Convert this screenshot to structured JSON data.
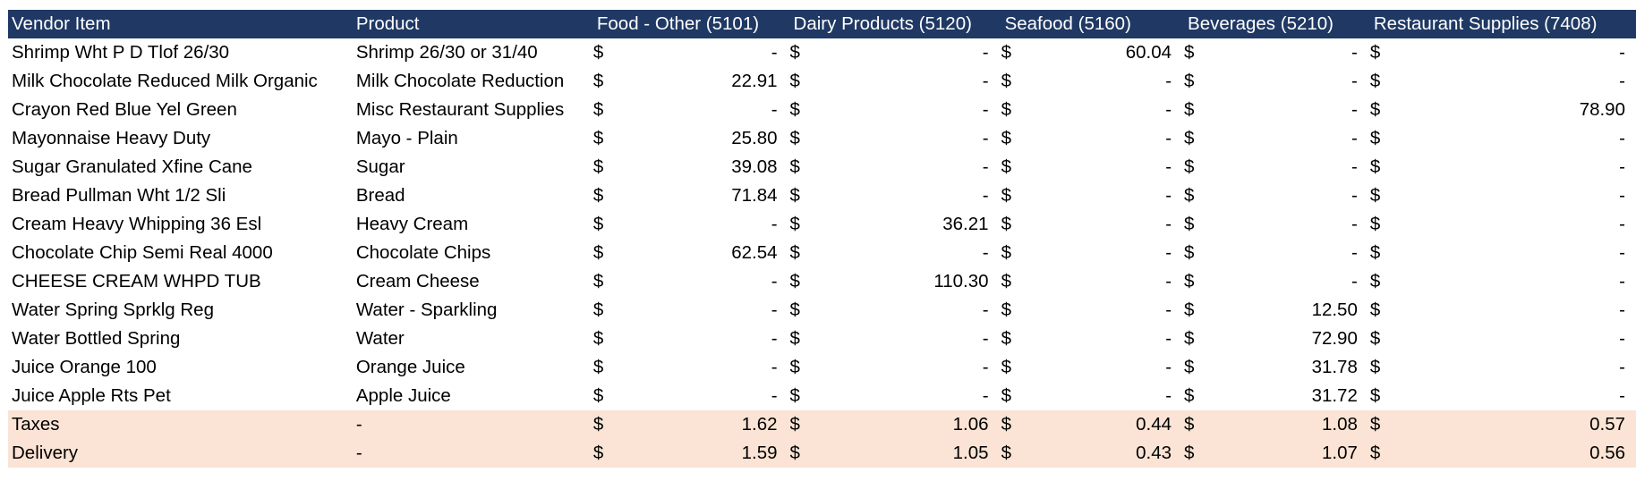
{
  "columns": [
    "Vendor Item",
    "Product",
    "Food - Other (5101)",
    "Dairy Products (5120)",
    "Seafood (5160)",
    "Beverages (5210)",
    "Restaurant Supplies (7408)"
  ],
  "currency_symbol": "$",
  "rows": [
    {
      "item": "Shrimp Wht P D Tlof 26/30",
      "product": "Shrimp 26/30 or 31/40",
      "values": [
        "-",
        "-",
        "60.04",
        "-",
        "-"
      ]
    },
    {
      "item": "Milk Chocolate Reduced Milk Organic",
      "product": "Milk Chocolate Reduction",
      "values": [
        "22.91",
        "-",
        "-",
        "-",
        "-"
      ]
    },
    {
      "item": "Crayon Red Blue Yel Green",
      "product": "Misc Restaurant Supplies",
      "values": [
        "-",
        "-",
        "-",
        "-",
        "78.90"
      ]
    },
    {
      "item": "Mayonnaise Heavy Duty",
      "product": "Mayo - Plain",
      "values": [
        "25.80",
        "-",
        "-",
        "-",
        "-"
      ]
    },
    {
      "item": "Sugar Granulated Xfine Cane",
      "product": "Sugar",
      "values": [
        "39.08",
        "-",
        "-",
        "-",
        "-"
      ]
    },
    {
      "item": "Bread Pullman Wht 1/2 Sli",
      "product": "Bread",
      "values": [
        "71.84",
        "-",
        "-",
        "-",
        "-"
      ]
    },
    {
      "item": "Cream Heavy Whipping 36  Esl",
      "product": "Heavy Cream",
      "values": [
        "-",
        "36.21",
        "-",
        "-",
        "-"
      ]
    },
    {
      "item": "Chocolate Chip Semi Real 4000",
      "product": "Chocolate Chips",
      "values": [
        "62.54",
        "-",
        "-",
        "-",
        "-"
      ]
    },
    {
      "item": "CHEESE CREAM WHPD TUB",
      "product": "Cream Cheese",
      "values": [
        "-",
        "110.30",
        "-",
        "-",
        "-"
      ]
    },
    {
      "item": "Water Spring Sprklg Reg",
      "product": "Water - Sparkling",
      "values": [
        "-",
        "-",
        "-",
        "12.50",
        "-"
      ]
    },
    {
      "item": "Water Bottled Spring",
      "product": "Water",
      "values": [
        "-",
        "-",
        "-",
        "72.90",
        "-"
      ]
    },
    {
      "item": "Juice Orange 100",
      "product": "Orange Juice",
      "values": [
        "-",
        "-",
        "-",
        "31.78",
        "-"
      ]
    },
    {
      "item": "Juice Apple Rts Pet",
      "product": "Apple Juice",
      "values": [
        "-",
        "-",
        "-",
        "31.72",
        "-"
      ]
    },
    {
      "item": "Taxes",
      "product": "-",
      "values": [
        "1.62",
        "1.06",
        "0.44",
        "1.08",
        "0.57"
      ],
      "highlight": true
    },
    {
      "item": "Delivery",
      "product": "-",
      "values": [
        "1.59",
        "1.05",
        "0.43",
        "1.07",
        "0.56"
      ],
      "highlight": true
    }
  ],
  "colors": {
    "header_bg": "#1f3864",
    "header_text": "#ffffff",
    "summary_bg": "#fbe4d5"
  }
}
